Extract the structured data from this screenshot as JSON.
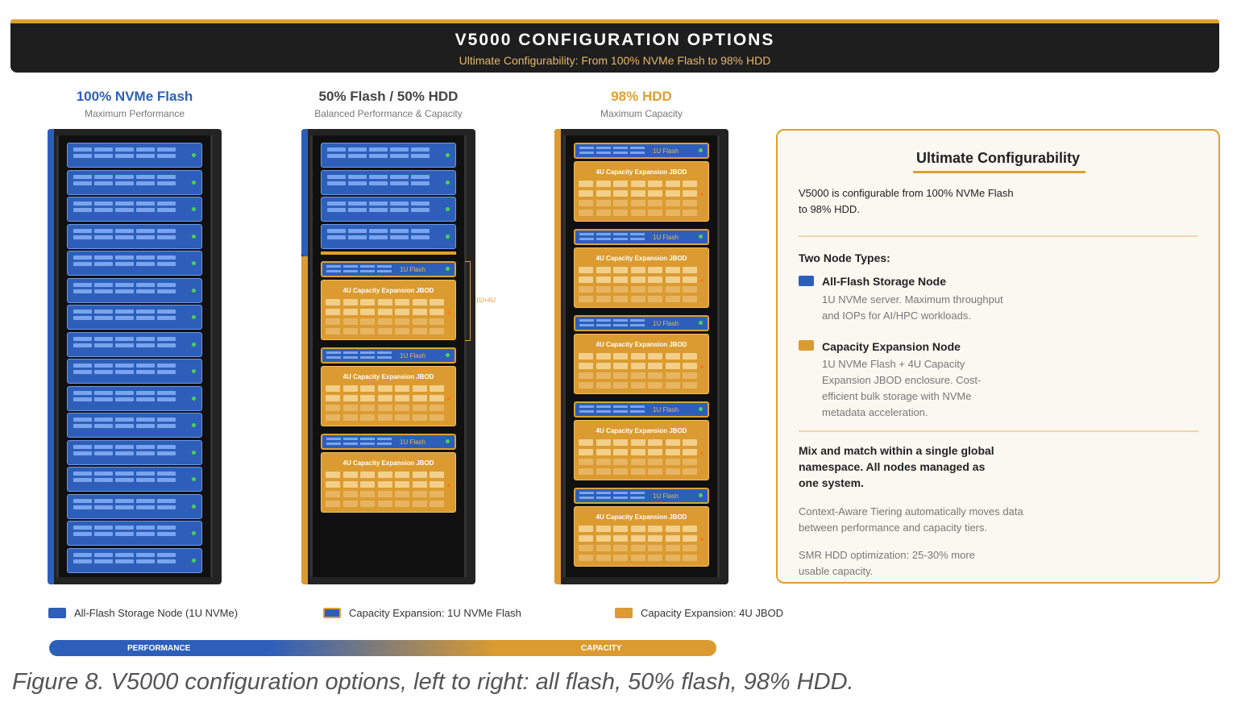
{
  "header": {
    "title": "V5000 CONFIGURATION OPTIONS",
    "subtitle": "Ultimate Configurability: From 100% NVMe Flash to 98% HDD"
  },
  "colors": {
    "flash_blue": "#2d5fba",
    "capacity_orange": "#db9b30",
    "header_bg": "#1e1e1e",
    "accent": "#e0a030"
  },
  "columns": [
    {
      "heading": "100% NVMe Flash",
      "subheading": "Maximum Performance",
      "color": "#2d5fba"
    },
    {
      "heading": "50% Flash / 50% HDD",
      "subheading": "Balanced Performance & Capacity",
      "color": "#444444"
    },
    {
      "heading": "98% HDD",
      "subheading": "Maximum Capacity",
      "color": "#e0a030"
    }
  ],
  "racks": {
    "flash_label": "1U Flash",
    "jbod_label": "4U Capacity Expansion JBOD",
    "bracket_label": "1U+4U",
    "rack1": {
      "flash_servers": 16,
      "capacity_nodes": 0
    },
    "rack2": {
      "flash_servers": 4,
      "capacity_nodes": 3
    },
    "rack3": {
      "flash_servers": 0,
      "capacity_nodes": 5
    }
  },
  "panel": {
    "title": "Ultimate Configurability",
    "intro": "V5000 is configurable from 100% NVMe Flash to 98% HDD.",
    "node_types_heading": "Two Node Types:",
    "node1_title": "All-Flash Storage Node",
    "node1_desc": "1U NVMe server. Maximum throughput and IOPs for AI/HPC workloads.",
    "node2_title": "Capacity Expansion Node",
    "node2_desc": "1U NVMe Flash + 4U Capacity Expansion JBOD enclosure. Cost-efficient bulk storage with NVMe metadata acceleration.",
    "mix": "Mix and match within a single global namespace. All nodes managed as one system.",
    "tiering": "Context-Aware Tiering automatically moves data between performance and capacity tiers.",
    "smr": "SMR HDD optimization: 25-30% more usable capacity."
  },
  "legend": [
    {
      "label": "All-Flash Storage Node (1U NVMe)"
    },
    {
      "label": "Capacity Expansion: 1U NVMe Flash"
    },
    {
      "label": "Capacity Expansion: 4U JBOD"
    }
  ],
  "spectrum": {
    "left": "PERFORMANCE",
    "right": "CAPACITY"
  },
  "caption": "Figure 8. V5000 configuration options, left to right: all flash, 50% flash, 98% HDD."
}
